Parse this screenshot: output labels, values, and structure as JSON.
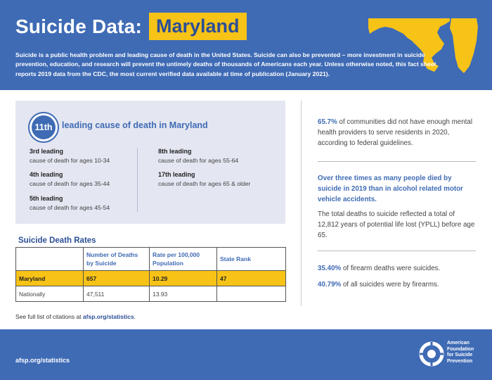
{
  "header": {
    "title": "Suicide Data:",
    "state": "Maryland",
    "intro": "Suicide is a public health problem and leading cause of death in the United States. Suicide can also be prevented – more investment in suicide prevention, education, and research will prevent the untimely deaths of thousands of Americans each year. Unless otherwise noted, this fact sheet reports 2019 data from the CDC, the most current verified data available at time of publication (January 2021)."
  },
  "leading_cause": {
    "rank": "11th",
    "text": "leading cause of death in Maryland",
    "items": [
      {
        "label": "3rd leading",
        "desc": "cause of death for ages 10-34"
      },
      {
        "label": "4th leading",
        "desc": "cause of death for ages 35-44"
      },
      {
        "label": "5th leading",
        "desc": "cause of death for ages 45-54"
      },
      {
        "label": "8th leading",
        "desc": "cause of death for ages 55-64"
      },
      {
        "label": "17th leading",
        "desc": "cause of death for ages 65 & older"
      }
    ]
  },
  "rates": {
    "title": "Suicide Death Rates",
    "headers": [
      "",
      "Number of Deaths by Suicide",
      "Rate per 100,000 Population",
      "State Rank"
    ],
    "rows": [
      [
        "Maryland",
        "657",
        "10.29",
        "47"
      ],
      [
        "Nationally",
        "47,511",
        "13.93",
        ""
      ]
    ]
  },
  "citation": {
    "prefix": "See full list of citations at ",
    "link": "afsp.org/statistics",
    "suffix": "."
  },
  "stats": {
    "s1_value": "65.7%",
    "s1_text": " of communities did not have enough mental health providers to serve residents in 2020, according to federal guidelines.",
    "callout": "Over three times as many people died by suicide in 2019 than in alcohol related motor vehicle accidents.",
    "ypll": "The total deaths to suicide reflected a total of 12,812 years of potential life lost (YPLL) before age 65.",
    "s2_value": "35.40%",
    "s2_text": " of firearm deaths were suicides.",
    "s3_value": "40.79%",
    "s3_text": " of all suicides were by firearms."
  },
  "footer": {
    "url": "afsp.org/statistics",
    "org_line1": "American",
    "org_line2": "Foundation",
    "org_line3": "for Suicide",
    "org_line4": "Prevention"
  },
  "colors": {
    "brand_blue": "#3f6bb5",
    "brand_yellow": "#f8c317",
    "panel_gray": "#e4e6f1"
  }
}
